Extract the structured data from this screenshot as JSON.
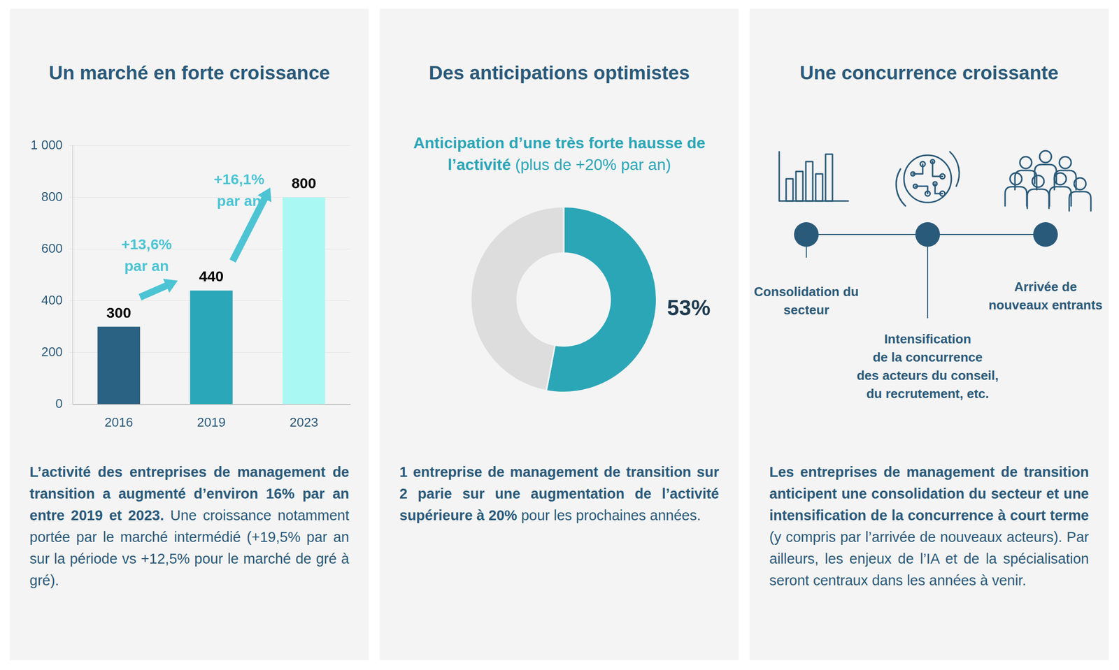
{
  "chart_data": [
    {
      "type": "bar",
      "title": "Un marché en forte croissance",
      "categories": [
        "2016",
        "2019",
        "2023"
      ],
      "values": [
        300,
        440,
        800
      ],
      "colors": [
        "#2a6283",
        "#2aa7b8",
        "#aaf8f3"
      ],
      "ylim": [
        0,
        1000
      ],
      "yticks": [
        0,
        200,
        400,
        600,
        800,
        {
          "value": 1000,
          "label": "1 000"
        }
      ],
      "grid": true,
      "data_labels": true,
      "annotations": [
        [
          "+13,6%",
          "par an"
        ],
        [
          "+16,1%",
          "par an"
        ]
      ],
      "description": {
        "bold": "L’activité des entreprises de management de transition a augmenté d’environ 16% par an entre 2019 et 2023.",
        "normal": "Une croissance notamment portée par le marché intermédié (+19,5% par an sur la période vs +12,5% pour le marché de gré à gré)."
      }
    },
    {
      "type": "doughnut",
      "title": "Des anticipations optimistes",
      "subtitle": "Anticipation d’une très forte hausse de l’activité",
      "subtitle_note": "(plus de +20% par an)",
      "values": [
        53,
        47
      ],
      "value_labels": [
        "53%",
        null
      ],
      "colors": [
        "#2ba6b7",
        "#dddddd"
      ],
      "data_labels": true,
      "description": {
        "bold": "1 entreprise de management de transition sur 2 parie sur une augmentation de l’activité supérieure à 20%",
        "normal": "pour les prochaines années."
      }
    }
  ],
  "diagram": {
    "title": "Une concurrence croissante",
    "nodes": [
      {
        "label": [
          "Consolidation du",
          "secteur"
        ]
      },
      {
        "label": [
          "Intensification",
          "de la concurrence",
          "des acteurs du conseil,",
          "du recrutement, etc."
        ]
      },
      {
        "label": [
          "Arrivée de",
          "nouveaux entrants"
        ]
      }
    ],
    "description": {
      "bold": "Les entreprises de management de transition anticipent une consolidation du secteur et une intensification de la concurrence à court terme",
      "normal": "(y compris par l’arrivée de nouveaux acteurs). Par ailleurs, les enjeux de l’IA et de la spécialisation seront centraux dans les années à venir."
    }
  }
}
